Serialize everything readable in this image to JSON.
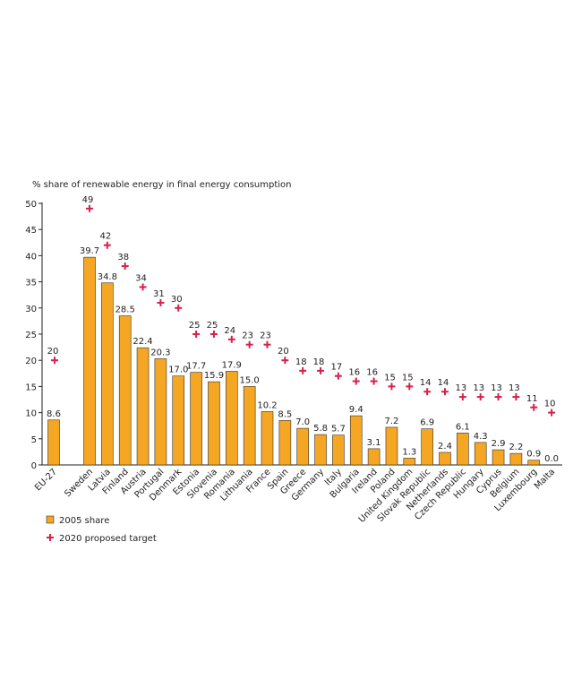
{
  "chart_data": {
    "type": "bar",
    "ylabel": "% share of renewable energy in final energy consumption",
    "ylim": [
      0,
      50
    ],
    "yticks": [
      0,
      5,
      10,
      15,
      20,
      25,
      30,
      35,
      40,
      45,
      50
    ],
    "grid": false,
    "legend_position": "bottom-left",
    "categories": [
      "EU-27",
      "Sweden",
      "Latvia",
      "Finland",
      "Austria",
      "Portugal",
      "Denmark",
      "Estonia",
      "Slovenia",
      "Romania",
      "Lithuania",
      "France",
      "Spain",
      "Greece",
      "Germany",
      "Italy",
      "Bulgaria",
      "Ireland",
      "Poland",
      "United Kingdom",
      "Slovak Republic",
      "Netherlands",
      "Czech Republic",
      "Hungary",
      "Cyprus",
      "Belgium",
      "Luxembourg",
      "Malta"
    ],
    "series": [
      {
        "name": "2005 share",
        "type": "bar",
        "color": "#f5a623",
        "values": [
          8.6,
          39.7,
          34.8,
          28.5,
          22.4,
          20.3,
          17.0,
          17.7,
          15.9,
          17.9,
          15.0,
          10.2,
          8.5,
          7.0,
          5.8,
          5.7,
          9.4,
          3.1,
          7.2,
          1.3,
          6.9,
          2.4,
          6.1,
          4.3,
          2.9,
          2.2,
          0.9,
          0.0
        ],
        "labels": [
          "8.6",
          "39.7",
          "34.8",
          "28.5",
          "22.4",
          "20.3",
          "17.0",
          "17.7",
          "15.9",
          "17.9",
          "15.0",
          "10.2",
          "8.5",
          "7.0",
          "5.8",
          "5.7",
          "9.4",
          "3.1",
          "7.2",
          "1.3",
          "6.9",
          "2.4",
          "6.1",
          "4.3",
          "2.9",
          "2.2",
          "0.9",
          "0.0"
        ]
      },
      {
        "name": "2020 proposed target",
        "type": "scatter",
        "marker": "plus",
        "color": "#d6204e",
        "values": [
          20,
          49,
          42,
          38,
          34,
          31,
          30,
          25,
          25,
          24,
          23,
          23,
          20,
          18,
          18,
          17,
          16,
          16,
          15,
          15,
          14,
          14,
          13,
          13,
          13,
          13,
          11,
          10
        ],
        "labels": [
          "20",
          "49",
          "42",
          "38",
          "34",
          "31",
          "30",
          "25",
          "25",
          "24",
          "23",
          "23",
          "20",
          "18",
          "18",
          "17",
          "16",
          "16",
          "15",
          "15",
          "14",
          "14",
          "13",
          "13",
          "13",
          "13",
          "11",
          "10"
        ]
      }
    ]
  }
}
